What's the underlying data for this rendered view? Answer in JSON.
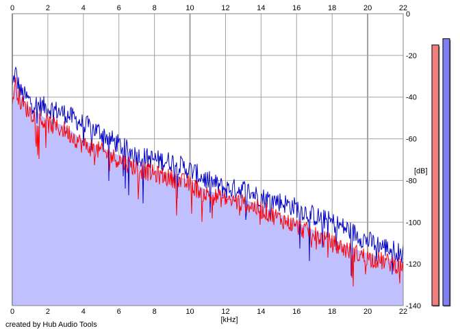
{
  "credit": "created by Hub Audio Tools",
  "chart_data": {
    "type": "area",
    "xlabel": "[kHz]",
    "ylabel": "[dB]",
    "xlim": [
      0,
      22
    ],
    "ylim": [
      -140,
      0
    ],
    "x_ticks": [
      0,
      2,
      4,
      6,
      8,
      10,
      12,
      14,
      16,
      18,
      20,
      22
    ],
    "y_ticks": [
      0,
      -20,
      -40,
      -60,
      -80,
      -100,
      -120,
      -140
    ],
    "grid": true,
    "colors": {
      "background": "#ffffff",
      "grid": "#a0a0a0",
      "area_fill": "#c0c0ff",
      "red_series": "#ff0000",
      "blue_series": "#0000c8",
      "level_left": "#f08080",
      "level_right": "#8080f0"
    },
    "series": [
      {
        "color": "#0000c8",
        "x": [
          0,
          0.1,
          0.2,
          0.3,
          0.5,
          1,
          1.5,
          2,
          3,
          4,
          5,
          6,
          7,
          8,
          9,
          10,
          11,
          12,
          13,
          14,
          15,
          16,
          17,
          18,
          19,
          20,
          21,
          22
        ],
        "y": [
          -36,
          -30,
          -28,
          -33,
          -38,
          -42,
          -44,
          -45,
          -48,
          -53,
          -57,
          -63,
          -68,
          -70,
          -71,
          -75,
          -80,
          -84,
          -84,
          -88,
          -90,
          -93,
          -97,
          -100,
          -104,
          -109,
          -112,
          -115
        ]
      },
      {
        "color": "#ff0000",
        "x": [
          0,
          0.1,
          0.2,
          0.3,
          0.5,
          1,
          1.5,
          2,
          3,
          4,
          5,
          6,
          7,
          8,
          9,
          10,
          11,
          12,
          13,
          14,
          15,
          16,
          17,
          18,
          19,
          20,
          21,
          22
        ],
        "y": [
          -42,
          -36,
          -34,
          -38,
          -43,
          -47,
          -50,
          -53,
          -56,
          -63,
          -66,
          -70,
          -74,
          -77,
          -79,
          -82,
          -87,
          -89,
          -91,
          -94,
          -98,
          -102,
          -106,
          -110,
          -114,
          -117,
          -119,
          -121
        ]
      }
    ],
    "levels": [
      {
        "color": "#f08080",
        "value": -15
      },
      {
        "color": "#8080f0",
        "value": -12
      }
    ]
  }
}
